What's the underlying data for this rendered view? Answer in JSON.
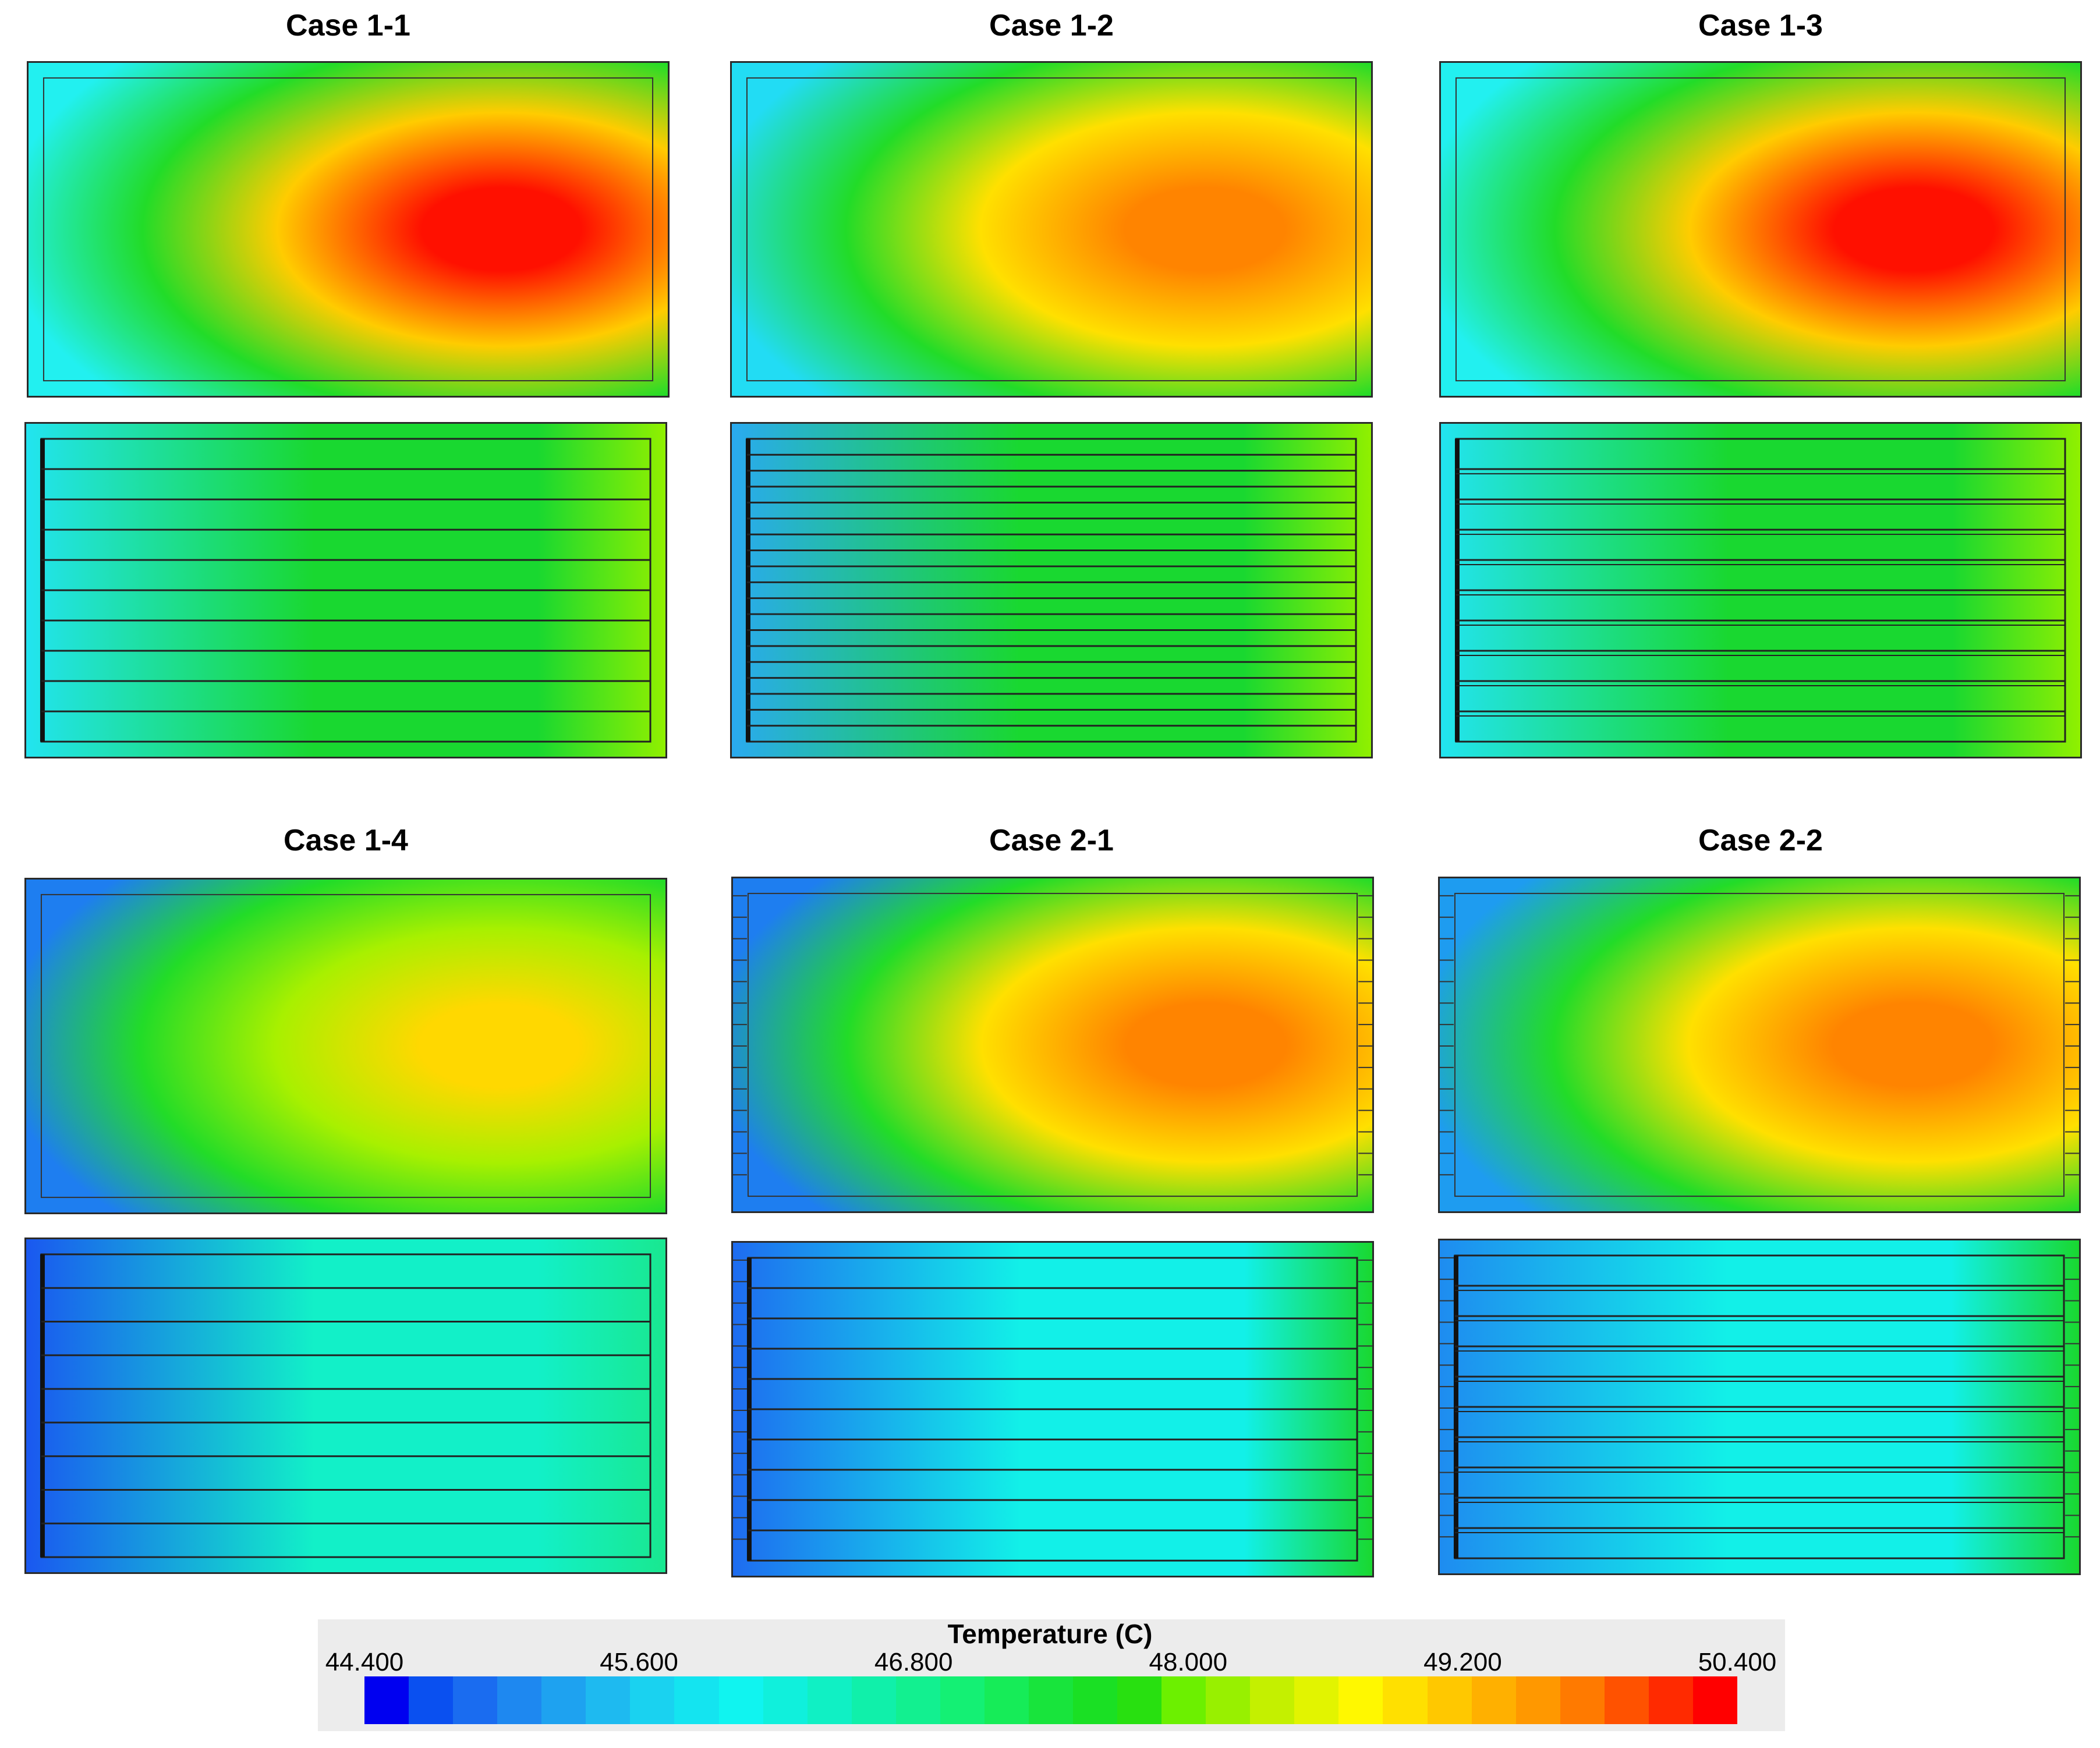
{
  "cases": [
    {
      "title": "Case 1-1",
      "top_hot": "#ff1000",
      "top_mid": "#ffcc00",
      "top_edge": "#22f0f0",
      "bot_cold": "#22e4f0",
      "bot_mid": "#19d830",
      "bot_warm": "#90f000",
      "top_lines": 0,
      "bot_lines": 9,
      "double_lines": false,
      "side_fins": false
    },
    {
      "title": "Case 1-2",
      "top_hot": "#ff8400",
      "top_mid": "#ffe000",
      "top_edge": "#22dcf4",
      "bot_cold": "#2aaaf0",
      "bot_mid": "#19d830",
      "bot_warm": "#90f000",
      "top_lines": 0,
      "bot_lines": 18,
      "double_lines": false,
      "side_fins": false
    },
    {
      "title": "Case 1-3",
      "top_hot": "#ff1000",
      "top_mid": "#ffcc00",
      "top_edge": "#22f0f0",
      "bot_cold": "#22e4f0",
      "bot_mid": "#19d830",
      "bot_warm": "#90f000",
      "top_lines": 0,
      "bot_lines": 9,
      "double_lines": true,
      "side_fins": false
    },
    {
      "title": "Case 1-4",
      "top_hot": "#ffd800",
      "top_mid": "#a8f000",
      "top_edge": "#1e7ef0",
      "bot_cold": "#1a58f0",
      "bot_mid": "#12f0c8",
      "bot_warm": "#19e890",
      "top_lines": 0,
      "bot_lines": 8,
      "double_lines": false,
      "side_fins": false
    },
    {
      "title": "Case 2-1",
      "top_hot": "#ff8400",
      "top_mid": "#ffe000",
      "top_edge": "#1e7ef0",
      "bot_cold": "#1e6cf0",
      "bot_mid": "#12f0e8",
      "bot_warm": "#19d830",
      "top_lines": 0,
      "bot_lines": 9,
      "double_lines": false,
      "side_fins": true
    },
    {
      "title": "Case 2-2",
      "top_hot": "#ff8400",
      "top_mid": "#ffe000",
      "top_edge": "#1e9cf0",
      "bot_cold": "#1e8cf0",
      "bot_mid": "#12f0e8",
      "bot_warm": "#19d830",
      "top_lines": 0,
      "bot_lines": 9,
      "double_lines": true,
      "side_fins": true
    }
  ],
  "legend": {
    "title": "Temperature (C)",
    "ticks": [
      "44.400",
      "45.600",
      "46.800",
      "48.000",
      "49.200",
      "50.400"
    ],
    "tick_values": [
      44.4,
      45.6,
      46.8,
      48.0,
      49.2,
      50.4
    ],
    "min": 44.4,
    "max": 50.4,
    "colors": [
      "#0000f0",
      "#0a50f0",
      "#1a6cf0",
      "#1e88f0",
      "#1ea2f0",
      "#1ebaf0",
      "#1ad2f0",
      "#14e4f0",
      "#10f4f0",
      "#10f0dc",
      "#10f0c4",
      "#10f0aa",
      "#12f090",
      "#14f074",
      "#16ec58",
      "#18e43c",
      "#1ae024",
      "#28e010",
      "#6cf000",
      "#98f000",
      "#c4f000",
      "#e2f400",
      "#fff800",
      "#ffe000",
      "#ffc800",
      "#ffb000",
      "#ff9800",
      "#ff7a00",
      "#ff5200",
      "#ff2a00",
      "#ff0000"
    ]
  }
}
